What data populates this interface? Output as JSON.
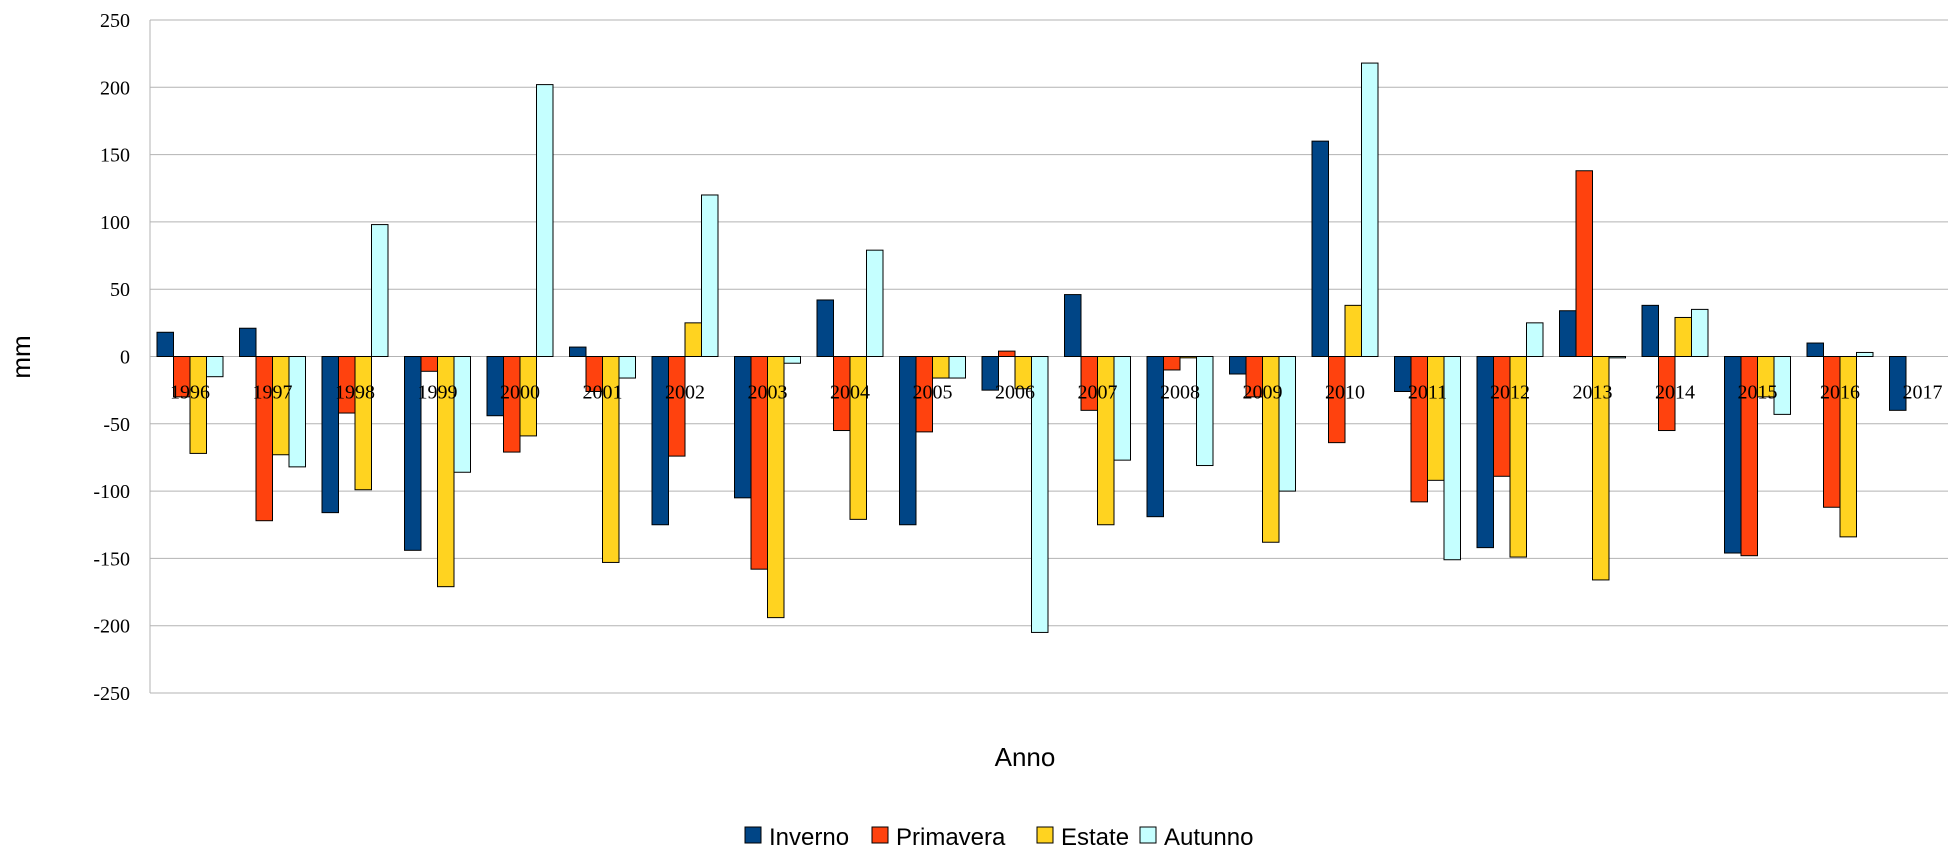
{
  "chart_data": {
    "type": "bar",
    "title": "",
    "xlabel": "Anno",
    "ylabel": "mm",
    "ylim": [
      -250,
      250
    ],
    "y_ticks": [
      250,
      200,
      150,
      100,
      50,
      0,
      -50,
      -100,
      -150,
      -200,
      -250
    ],
    "grid": true,
    "legend_position": "bottom",
    "categories": [
      "1996",
      "1997",
      "1998",
      "1999",
      "2000",
      "2001",
      "2002",
      "2003",
      "2004",
      "2005",
      "2006",
      "2007",
      "2008",
      "2009",
      "2010",
      "2011",
      "2012",
      "2013",
      "2014",
      "2015",
      "2016",
      "2017"
    ],
    "series": [
      {
        "name": "Inverno",
        "color": "#004586",
        "values": [
          18,
          21,
          -116,
          -144,
          -44,
          7,
          -125,
          -105,
          42,
          -125,
          -25,
          46,
          -119,
          -13,
          160,
          -26,
          -142,
          34,
          38,
          -146,
          10,
          -40
        ]
      },
      {
        "name": "Primavera",
        "color": "#ff420e",
        "values": [
          -30,
          -122,
          -42,
          -11,
          -71,
          -26,
          -74,
          -158,
          -55,
          -56,
          4,
          -40,
          -10,
          -30,
          -64,
          -108,
          -89,
          138,
          -55,
          -148,
          -112,
          0
        ]
      },
      {
        "name": "Estate",
        "color": "#ffd320",
        "values": [
          -72,
          -73,
          -99,
          -171,
          -59,
          -153,
          25,
          -194,
          -121,
          -16,
          -24,
          -125,
          -1,
          -138,
          38,
          -92,
          -149,
          -166,
          29,
          -30,
          -134,
          0
        ]
      },
      {
        "name": "Autunno",
        "color": "#c5ffff",
        "values": [
          -15,
          -82,
          98,
          -86,
          202,
          -16,
          120,
          -5,
          79,
          -16,
          -205,
          -77,
          -81,
          -100,
          218,
          -151,
          25,
          -1,
          35,
          -43,
          3,
          0
        ]
      }
    ]
  }
}
